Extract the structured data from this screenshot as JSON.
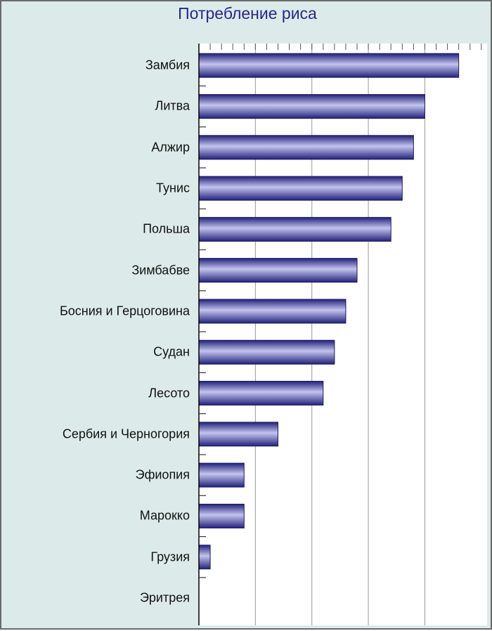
{
  "chart_data": {
    "type": "bar",
    "orientation": "horizontal",
    "title": "Потребление риса",
    "categories": [
      "Замбия",
      "Литва",
      "Алжир",
      "Тунис",
      "Польша",
      "Зимбабве",
      "Босния и Герцоговина",
      "Судан",
      "Лесото",
      "Сербия и Черногория",
      "Эфиопия",
      "Марокко",
      "Грузия",
      "Эритрея"
    ],
    "values": [
      46,
      40,
      38,
      36,
      34,
      28,
      26,
      24,
      22,
      14,
      8,
      8,
      2,
      0
    ],
    "xlim": [
      0,
      50
    ],
    "grid": true,
    "bar_color": "#2e2e8c"
  }
}
